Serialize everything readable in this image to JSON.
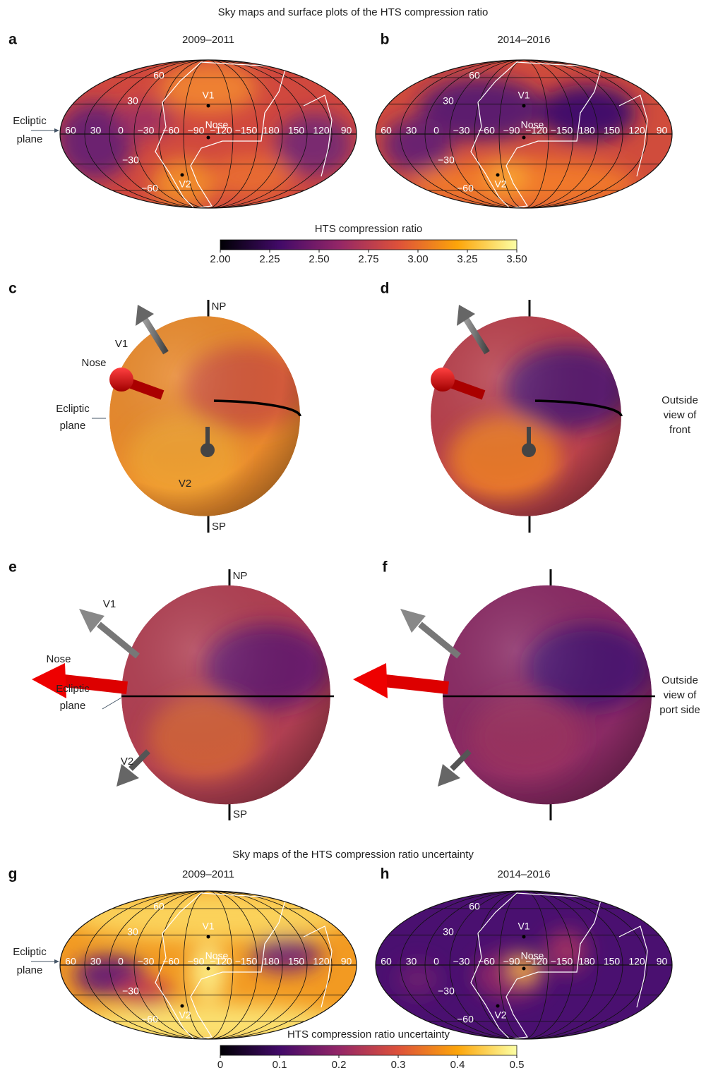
{
  "figure": {
    "title": "Sky maps and surface plots of the HTS compression ratio",
    "uncertainty_title": "Sky maps of the HTS compression ratio uncertainty",
    "panel_letters": [
      "a",
      "b",
      "c",
      "d",
      "e",
      "f",
      "g",
      "h"
    ],
    "periods": [
      "2009–2011",
      "2014–2016"
    ],
    "longitudes": [
      "60",
      "30",
      "0",
      "−30",
      "−60",
      "−90",
      "−120",
      "−150",
      "180",
      "150",
      "120",
      "90"
    ],
    "latitudes": [
      "60",
      "30",
      "−30",
      "−60"
    ],
    "markers": {
      "v1": "V1",
      "v2": "V2",
      "nose": "Nose",
      "np": "NP",
      "sp": "SP"
    },
    "ecliptic_label": [
      "Ecliptic",
      "plane"
    ],
    "front_view_label": [
      "Outside",
      "view of",
      "front"
    ],
    "port_view_label": [
      "Outside",
      "view of",
      "port side"
    ],
    "colorbars": [
      {
        "label": "HTS compression ratio",
        "lim": [
          2,
          3.5
        ],
        "ticks": [
          {
            "value": 2,
            "label": "2.00"
          },
          2.25,
          {
            "value": 2.5,
            "label": "2.50"
          },
          2.75,
          {
            "value": 3,
            "label": "3.00"
          },
          3.25,
          {
            "value": 3.5,
            "label": "3.50"
          }
        ]
      },
      {
        "label": "HTS compression ratio uncertainty",
        "lim": [
          0,
          0.5
        ],
        "ticks": [
          0,
          0.1,
          0.2,
          0.3,
          0.4,
          0.5
        ]
      }
    ]
  }
}
